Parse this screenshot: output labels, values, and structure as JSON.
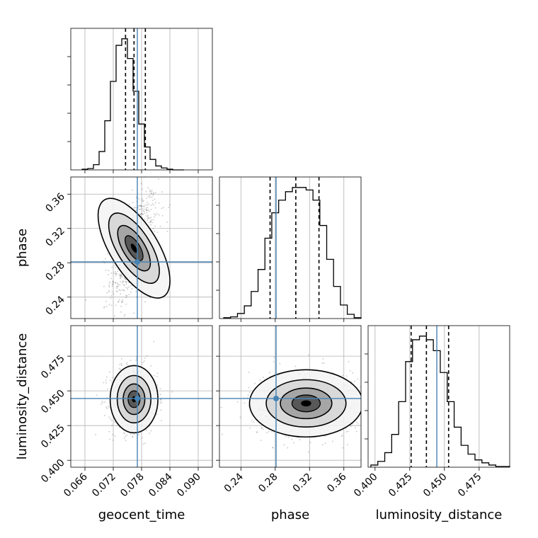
{
  "chart_data": {
    "type": "corner",
    "parameters": [
      "geocent_time",
      "phase",
      "luminosity_distance"
    ],
    "axis_labels": {
      "x": [
        "geocent_time",
        "phase",
        "luminosity_distance"
      ],
      "y": [
        "phase",
        "luminosity_distance"
      ]
    },
    "ranges": {
      "geocent_time": [
        0.063,
        0.093
      ],
      "phase": [
        0.215,
        0.38
      ],
      "luminosity_distance": [
        0.395,
        0.497
      ]
    },
    "ticks": {
      "geocent_time": [
        "0.066",
        "0.072",
        "0.078",
        "0.084",
        "0.090"
      ],
      "phase": [
        "0.24",
        "0.28",
        "0.32",
        "0.36"
      ],
      "luminosity_distance": [
        "0.400",
        "0.425",
        "0.450",
        "0.475"
      ]
    },
    "truths": {
      "geocent_time": 0.0771,
      "phase": 0.281,
      "luminosity_distance": 0.4445
    },
    "truth_color": "#4682b4",
    "quantiles": {
      "geocent_time": [
        0.0746,
        0.0764,
        0.0788
      ],
      "phase": [
        0.274,
        0.304,
        0.331
      ],
      "luminosity_distance": [
        0.426,
        0.437,
        0.453
      ]
    },
    "marginals": {
      "geocent_time": {
        "edges": [
          0.0654,
          0.0666,
          0.0678,
          0.069,
          0.0702,
          0.0714,
          0.0726,
          0.0738,
          0.075,
          0.0762,
          0.0774,
          0.0786,
          0.0798,
          0.081,
          0.0822,
          0.0834,
          0.0846,
          0.0858,
          0.087
        ],
        "counts": [
          1,
          2,
          8,
          28,
          75,
          135,
          190,
          200,
          170,
          120,
          70,
          35,
          16,
          6,
          3,
          1,
          0,
          0
        ]
      },
      "phase": {
        "edges": [
          0.22,
          0.228,
          0.236,
          0.244,
          0.252,
          0.26,
          0.268,
          0.276,
          0.284,
          0.292,
          0.3,
          0.308,
          0.316,
          0.324,
          0.332,
          0.34,
          0.348,
          0.356,
          0.364,
          0.372,
          0.38
        ],
        "counts": [
          1,
          2,
          6,
          15,
          32,
          58,
          95,
          125,
          140,
          150,
          155,
          155,
          152,
          140,
          110,
          70,
          38,
          16,
          5,
          1
        ]
      },
      "luminosity_distance": {
        "edges": [
          0.397,
          0.402,
          0.407,
          0.412,
          0.417,
          0.422,
          0.427,
          0.432,
          0.437,
          0.442,
          0.447,
          0.452,
          0.457,
          0.462,
          0.467,
          0.472,
          0.477,
          0.482,
          0.487,
          0.492,
          0.497
        ],
        "counts": [
          3,
          8,
          20,
          45,
          90,
          145,
          175,
          180,
          175,
          160,
          130,
          90,
          55,
          30,
          18,
          10,
          6,
          3,
          1,
          1
        ]
      }
    },
    "posterior_peaks": {
      "phase_vs_geocent_time": {
        "x": 0.0764,
        "y": 0.297
      },
      "luminosity_distance_vs_geocent_time": {
        "x": 0.0764,
        "y": 0.444
      },
      "luminosity_distance_vs_phase": {
        "x": 0.316,
        "y": 0.441
      }
    },
    "grid": true
  }
}
